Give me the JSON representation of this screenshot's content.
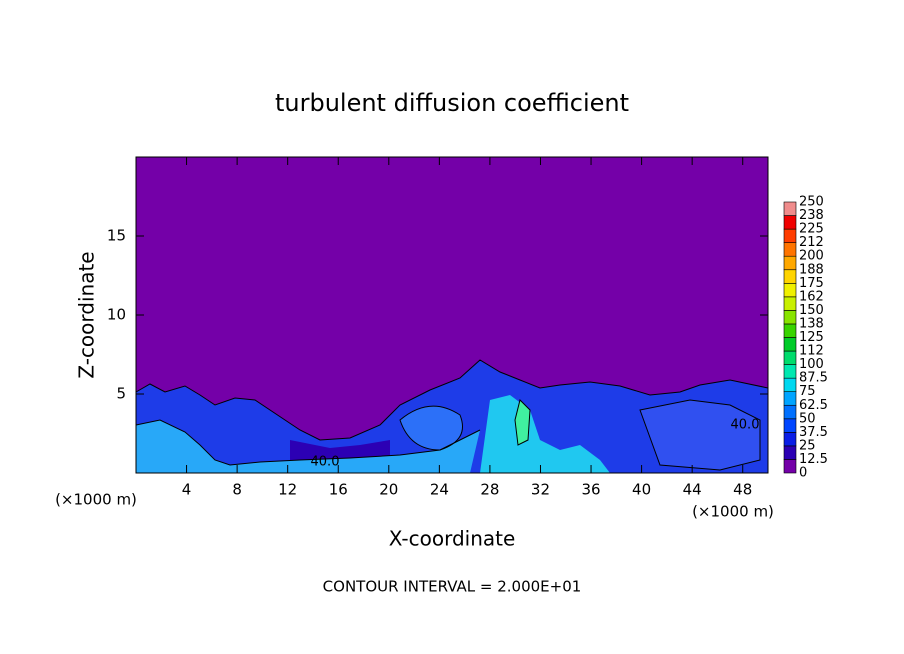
{
  "chart_data": {
    "type": "contour",
    "title": "turbulent diffusion coefficient",
    "x_label": "X-coordinate",
    "y_label": "Z-coordinate",
    "x_unit": "(×1000 m)",
    "y_unit": "(×1000 m)",
    "xlim": [
      0,
      50
    ],
    "ylim": [
      0,
      20
    ],
    "xticks": [
      4,
      8,
      12,
      16,
      20,
      24,
      28,
      32,
      36,
      40,
      44,
      48
    ],
    "yticks": [
      5,
      10,
      15
    ],
    "contour_labels": [
      "40.0",
      "40.0"
    ],
    "footer": "CONTOUR INTERVAL = 2.000E+01",
    "colorbar": {
      "levels": [
        0,
        12.5,
        25,
        37.5,
        50,
        62.5,
        75,
        87.5,
        100,
        112,
        125,
        138,
        150,
        162,
        175,
        188,
        200,
        212,
        225,
        238,
        250
      ],
      "colors": [
        "#7400a8",
        "#2c00b4",
        "#0a1ee6",
        "#0046ff",
        "#0070ff",
        "#00a4ff",
        "#00d8f0",
        "#00e8b0",
        "#00dc6c",
        "#00cc28",
        "#38d400",
        "#88e400",
        "#c8f000",
        "#f0f000",
        "#ffd400",
        "#ffa800",
        "#ff7400",
        "#ff3c00",
        "#f00000",
        "#f08c8c"
      ]
    }
  }
}
